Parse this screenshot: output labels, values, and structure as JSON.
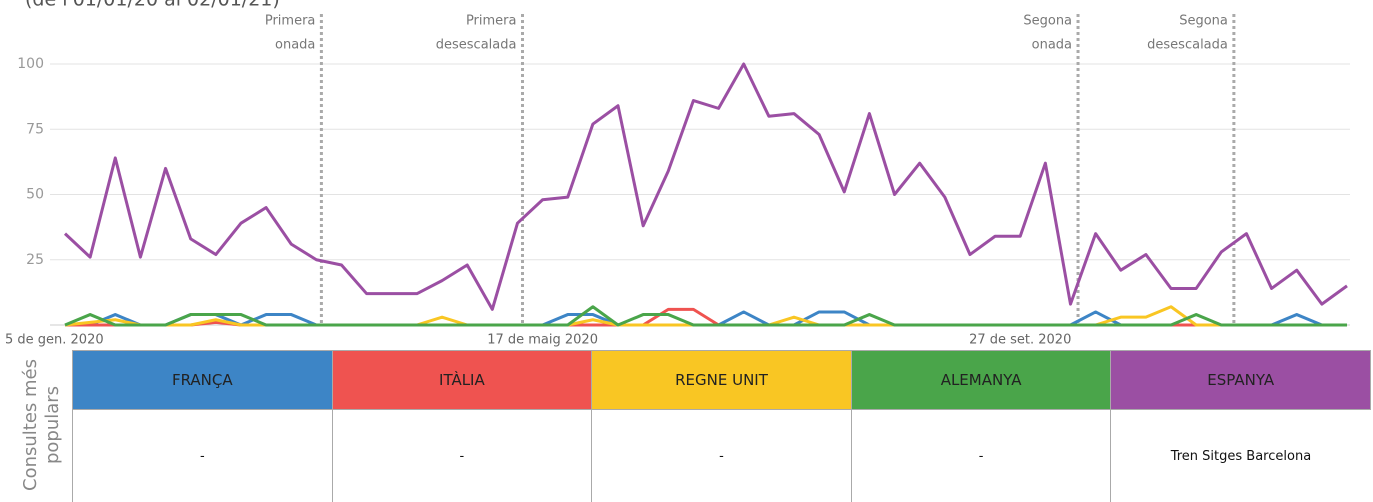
{
  "chart_data": {
    "type": "line",
    "subtitle": "(de l'01/01/20 al 02/01/21)",
    "categories": [
      "5 de gen. 2020",
      null,
      null,
      null,
      null,
      null,
      null,
      null,
      null,
      null,
      null,
      null,
      null,
      null,
      null,
      null,
      null,
      null,
      null,
      "17 de maig 2020",
      null,
      null,
      null,
      null,
      null,
      null,
      null,
      null,
      null,
      null,
      null,
      null,
      null,
      null,
      null,
      null,
      null,
      null,
      "27 de set. 2020",
      null,
      null,
      null,
      null,
      null,
      null,
      null,
      null,
      null,
      null,
      null,
      null,
      null
    ],
    "ylim": [
      0,
      100
    ],
    "yticks": [
      25,
      50,
      75,
      100
    ],
    "grid": true,
    "annotations": [
      {
        "lines": [
          "Primera",
          "onada"
        ],
        "x": 10.2
      },
      {
        "lines": [
          "Primera",
          "desescalada"
        ],
        "x": 18.2
      },
      {
        "lines": [
          "Segona",
          "onada"
        ],
        "x": 40.3
      },
      {
        "lines": [
          "Segona",
          "desescalada"
        ],
        "x": 46.5
      }
    ],
    "series": [
      {
        "name": "FRANÇA",
        "color": "#3d85c6",
        "values": [
          0,
          0,
          4,
          0,
          0,
          4,
          4,
          0,
          4,
          4,
          0,
          0,
          0,
          0,
          0,
          0,
          0,
          0,
          0,
          0,
          4,
          4,
          0,
          0,
          0,
          0,
          0,
          5,
          0,
          0,
          5,
          5,
          0,
          0,
          0,
          0,
          0,
          0,
          0,
          0,
          0,
          5,
          0,
          0,
          0,
          0,
          0,
          0,
          0,
          4,
          0,
          0
        ]
      },
      {
        "name": "ITÀLIA",
        "color": "#ef5350",
        "values": [
          0,
          0,
          0,
          0,
          0,
          0,
          1,
          0,
          0,
          0,
          0,
          0,
          0,
          0,
          0,
          0,
          0,
          0,
          0,
          0,
          0,
          0,
          0,
          0,
          6,
          6,
          0,
          0,
          0,
          0,
          0,
          0,
          0,
          0,
          0,
          0,
          0,
          0,
          0,
          0,
          0,
          0,
          0,
          0,
          0,
          0,
          0,
          0,
          0,
          0,
          0,
          0
        ]
      },
      {
        "name": "REGNE UNIT",
        "color": "#f9c623",
        "values": [
          0,
          1,
          2,
          0,
          0,
          0,
          2,
          0,
          0,
          0,
          0,
          0,
          0,
          0,
          0,
          3,
          0,
          0,
          0,
          0,
          0,
          2,
          0,
          0,
          0,
          0,
          0,
          0,
          0,
          3,
          0,
          0,
          0,
          0,
          0,
          0,
          0,
          0,
          0,
          0,
          0,
          0,
          3,
          3,
          7,
          0,
          0,
          0,
          0,
          0,
          0,
          0
        ]
      },
      {
        "name": "ALEMANYA",
        "color": "#4aa54a",
        "values": [
          0,
          4,
          0,
          0,
          0,
          4,
          4,
          4,
          0,
          0,
          0,
          0,
          0,
          0,
          0,
          0,
          0,
          0,
          0,
          0,
          0,
          7,
          0,
          4,
          4,
          0,
          0,
          0,
          0,
          0,
          0,
          0,
          4,
          0,
          0,
          0,
          0,
          0,
          0,
          0,
          0,
          0,
          0,
          0,
          0,
          4,
          0,
          0,
          0,
          0,
          0,
          0
        ]
      },
      {
        "name": "ESPANYA",
        "color": "#9b4fa3",
        "values": [
          35,
          26,
          64,
          26,
          60,
          33,
          27,
          39,
          45,
          31,
          25,
          23,
          12,
          12,
          12,
          17,
          23,
          6,
          39,
          48,
          49,
          77,
          84,
          38,
          59,
          86,
          83,
          100,
          80,
          81,
          73,
          51,
          81,
          50,
          62,
          49,
          27,
          34,
          34,
          62,
          8,
          35,
          21,
          27,
          14,
          14,
          28,
          35,
          14,
          21,
          8,
          15
        ]
      }
    ]
  },
  "table": {
    "row_header": "Consultes més populars",
    "rows": [
      [
        "-",
        "-",
        "-",
        "-",
        "Tren Sitges Barcelona"
      ]
    ]
  }
}
